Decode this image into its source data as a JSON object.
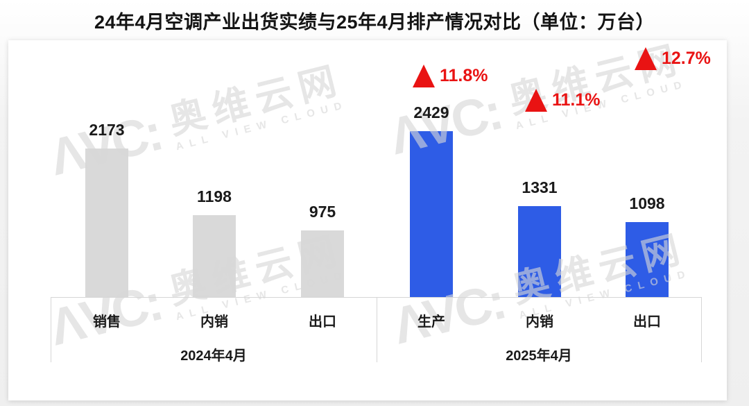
{
  "page": {
    "title": "24年4月空调产业出货实绩与25年4月排产情况对比（单位：万台）"
  },
  "watermark": {
    "logo": "ΛVC:",
    "name": "奥维云网",
    "tagline": "ALL VIEW CLOUD"
  },
  "colors": {
    "bar_2024": "#d9d9d9",
    "bar_2025": "#2e5ce6",
    "growth_red": "#e91313",
    "axis_border": "#d6d6d6"
  },
  "chart_data": {
    "type": "bar",
    "title": "24年4月空调产业出货实绩与25年4月排产情况对比",
    "unit_label": "单位：万台",
    "ylim": [
      0,
      2470
    ],
    "grid": false,
    "legend": "none",
    "groups": [
      {
        "label": "2024年4月",
        "color_key": "bar_2024",
        "bars": [
          {
            "category": "销售",
            "value": 2173
          },
          {
            "category": "内销",
            "value": 1198
          },
          {
            "category": "出口",
            "value": 975
          }
        ]
      },
      {
        "label": "2025年4月",
        "color_key": "bar_2025",
        "bars": [
          {
            "category": "生产",
            "value": 2429,
            "growth": "11.8%"
          },
          {
            "category": "内销",
            "value": 1331,
            "growth": "11.1%"
          },
          {
            "category": "出口",
            "value": 1098,
            "growth": "12.7%"
          }
        ]
      }
    ]
  }
}
